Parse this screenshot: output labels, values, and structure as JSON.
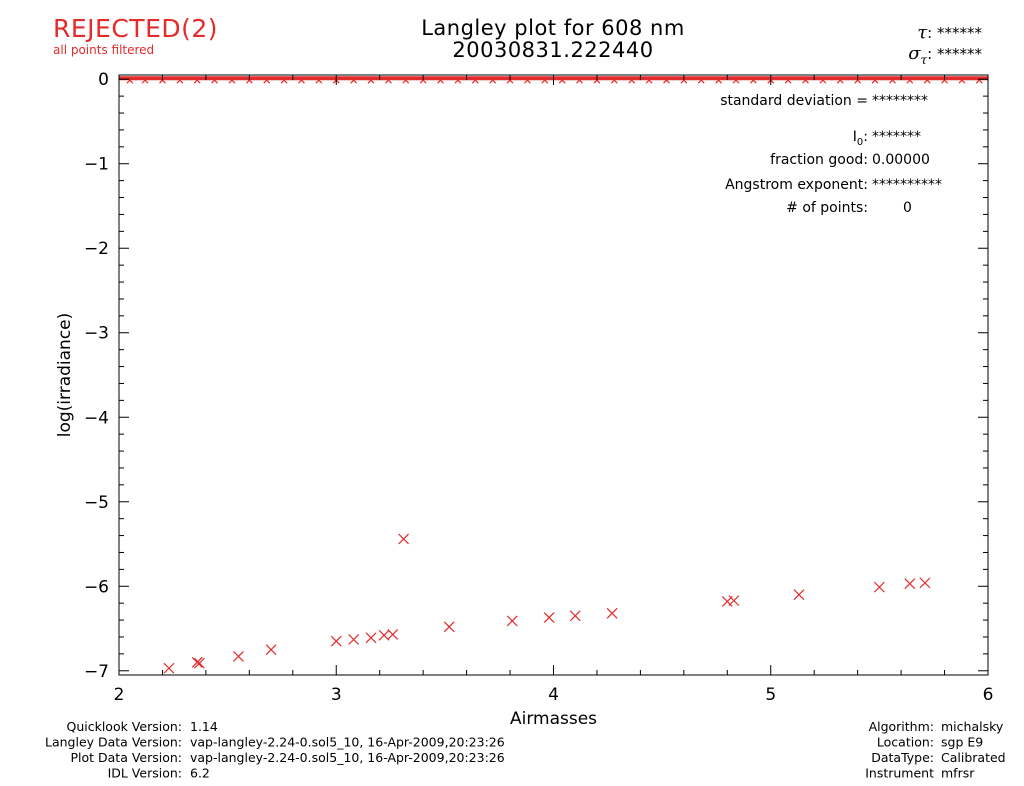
{
  "status": {
    "label": "REJECTED(2)",
    "sublabel": "all points filtered"
  },
  "header": {
    "tau_symbol": "τ",
    "tau_value": ": ******",
    "sigma_symbol": "σ",
    "sigma_sub": "τ",
    "sigma_value": ": ******"
  },
  "colors": {
    "data": "#e32b2b",
    "axes": "#000000",
    "background": "#ffffff"
  },
  "chart_data": {
    "type": "scatter",
    "title": "Langley plot for 608 nm",
    "subtitle": "20030831.222440",
    "xlabel": "Airmasses",
    "ylabel": "log(irradiance)",
    "xlim": [
      2,
      6
    ],
    "ylim": [
      -7.05,
      0.05
    ],
    "x_ticks": [
      2,
      3,
      4,
      5,
      6
    ],
    "x_tick_labels": [
      "2",
      "3",
      "4",
      "5",
      "6"
    ],
    "y_ticks": [
      0,
      -1,
      -2,
      -3,
      -4,
      -5,
      -6,
      -7
    ],
    "y_tick_labels": [
      "0",
      "−1",
      "−2",
      "−3",
      "−4",
      "−5",
      "−6",
      "−7"
    ],
    "grid": false,
    "marker": "x",
    "series": [
      {
        "values": [
          [
            2.23,
            -6.97
          ],
          [
            2.36,
            -6.9
          ],
          [
            2.37,
            -6.91
          ],
          [
            2.55,
            -6.83
          ],
          [
            2.7,
            -6.75
          ],
          [
            3.0,
            -6.65
          ],
          [
            3.08,
            -6.63
          ],
          [
            3.16,
            -6.61
          ],
          [
            3.22,
            -6.58
          ],
          [
            3.26,
            -6.57
          ],
          [
            3.31,
            -5.44
          ],
          [
            3.52,
            -6.48
          ],
          [
            3.81,
            -6.41
          ],
          [
            3.98,
            -6.37
          ],
          [
            4.1,
            -6.35
          ],
          [
            4.27,
            -6.32
          ],
          [
            4.8,
            -6.18
          ],
          [
            4.83,
            -6.17
          ],
          [
            5.13,
            -6.1
          ],
          [
            5.5,
            -6.01
          ],
          [
            5.64,
            -5.97
          ],
          [
            5.71,
            -5.96
          ]
        ],
        "top_band_x": [
          2.05,
          2.12,
          2.2,
          2.28,
          2.36,
          2.44,
          2.52,
          2.6,
          2.68,
          2.76,
          2.84,
          2.92,
          3.0,
          3.08,
          3.16,
          3.24,
          3.32,
          3.4,
          3.48,
          3.56,
          3.64,
          3.72,
          3.8,
          3.88,
          3.96,
          4.04,
          4.12,
          4.2,
          4.28,
          4.36,
          4.44,
          4.52,
          4.6,
          4.68,
          4.76,
          4.84,
          4.92,
          5.0,
          5.08,
          5.16,
          5.24,
          5.32,
          5.4,
          5.48,
          5.56,
          5.64,
          5.72,
          5.8,
          5.88,
          5.96
        ],
        "top_band_y": 0
      }
    ],
    "annotations": [
      {
        "label": "standard deviation  = ",
        "value": "********"
      },
      {
        "label": "I",
        "label_sub": "0",
        "label_tail": ": ",
        "value": "*******"
      },
      {
        "label": "fraction good: ",
        "value": "0.00000"
      },
      {
        "label": "Angstrom exponent: ",
        "value": "**********"
      },
      {
        "label": "# of points: ",
        "value": "0"
      }
    ]
  },
  "footer": {
    "left": [
      {
        "label": "Quicklook Version:",
        "value": "1.14"
      },
      {
        "label": "Langley Data Version:",
        "value": "vap-langley-2.24-0.sol5_10, 16-Apr-2009,20:23:26"
      },
      {
        "label": "Plot Data Version:",
        "value": "vap-langley-2.24-0.sol5_10, 16-Apr-2009,20:23:26"
      },
      {
        "label": "IDL Version:",
        "value": "6.2"
      }
    ],
    "right": [
      {
        "label": "Algorithm:",
        "value": "michalsky"
      },
      {
        "label": "Location:",
        "value": "sgp E9"
      },
      {
        "label": "DataType:",
        "value": "Calibrated"
      },
      {
        "label": "Instrument",
        "value": "mfrsr"
      }
    ]
  }
}
